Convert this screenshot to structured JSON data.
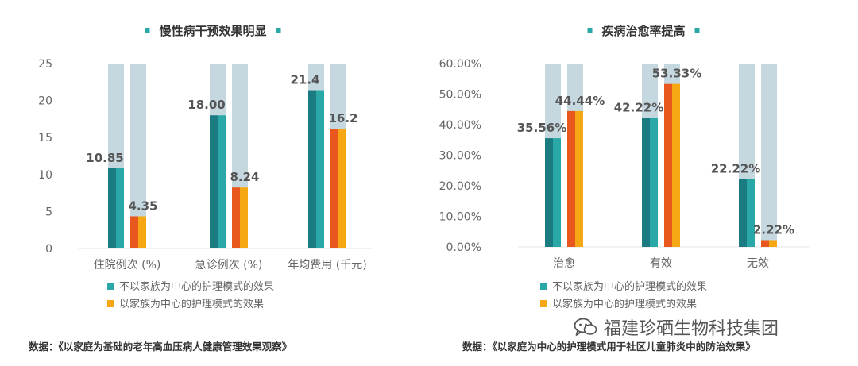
{
  "colors": {
    "series1": "#2aa8a8",
    "series1_dark": "#1a7c80",
    "series2": "#f5a814",
    "series2_dark": "#e8581e",
    "bg_bar": "#c5d7df",
    "axis_text": "#666666",
    "label_text": "#555555"
  },
  "chart_data": [
    {
      "type": "bar",
      "title": "慢性病干预效果明显",
      "categories": [
        "住院例次 (%)",
        "急诊例次 (%)",
        "年均费用 (千元)"
      ],
      "series": [
        {
          "name": "不以家族为中心的护理模式的效果",
          "values": [
            10.85,
            18.0,
            21.4
          ],
          "labels": [
            "10.85",
            "18.00",
            "21.4"
          ]
        },
        {
          "name": "以家族为中心的护理模式的效果",
          "values": [
            4.35,
            8.24,
            16.2
          ],
          "labels": [
            "4.35",
            "8.24",
            "16.2"
          ]
        }
      ],
      "yticks": [
        "0",
        "5",
        "10",
        "15",
        "20",
        "25"
      ],
      "ylim": [
        0,
        25
      ],
      "grid": false,
      "legend": "bottom-left",
      "source": "数据：《以家庭为基础的老年高血压病人健康管理效果观察》"
    },
    {
      "type": "bar",
      "title": "疾病治愈率提高",
      "categories": [
        "治愈",
        "有效",
        "无效"
      ],
      "series": [
        {
          "name": "不以家族为中心的护理模式的效果",
          "values": [
            35.56,
            42.22,
            22.22
          ],
          "labels": [
            "35.56%",
            "42.22%",
            "22.22%"
          ]
        },
        {
          "name": "以家族为中心的护理模式的效果",
          "values": [
            44.44,
            53.33,
            2.22
          ],
          "labels": [
            "44.44%",
            "53.33%",
            "2.22%"
          ]
        }
      ],
      "yticks": [
        "0.00%",
        "10.00%",
        "20.00%",
        "30.00%",
        "40.00%",
        "50.00%",
        "60.00%"
      ],
      "ylim": [
        0,
        60
      ],
      "grid": false,
      "legend": "bottom-left",
      "source": "数据：《以家庭为中心的护理模式用于社区儿童肺炎中的防治效果》"
    }
  ],
  "watermark": {
    "icon": "wechat-icon",
    "text": "福建珍硒生物科技集团"
  }
}
